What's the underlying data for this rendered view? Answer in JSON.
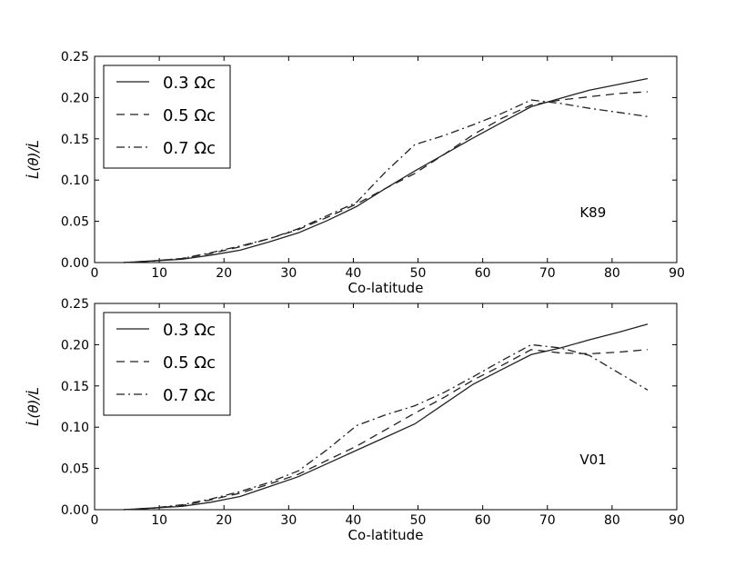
{
  "chart_data": [
    {
      "type": "line",
      "panel": "top",
      "annotation": "K89",
      "xlabel": "Co-latitude",
      "ylabel": "L̇(θ)/L̇",
      "xlim": [
        0,
        90
      ],
      "ylim": [
        0,
        0.25
      ],
      "xticks": [
        "0",
        "10",
        "20",
        "30",
        "40",
        "50",
        "60",
        "70",
        "80",
        "90"
      ],
      "yticks": [
        "0.00",
        "0.05",
        "0.10",
        "0.15",
        "0.20",
        "0.25"
      ],
      "legend_position": "top-left",
      "grid": false,
      "x": [
        4.5,
        9,
        13.5,
        18,
        22.5,
        27,
        31.5,
        36,
        40.5,
        45,
        49.5,
        54,
        58.5,
        63,
        67.5,
        72,
        76.5,
        81,
        85.5
      ],
      "series": [
        {
          "name": "0.3 Ωc",
          "style": "solid",
          "values": [
            0.0,
            0.002,
            0.004,
            0.009,
            0.015,
            0.025,
            0.036,
            0.051,
            0.068,
            0.09,
            0.111,
            0.131,
            0.151,
            0.17,
            0.189,
            0.199,
            0.209,
            0.216,
            0.223
          ]
        },
        {
          "name": "0.5 Ωc",
          "style": "dashed",
          "values": [
            0.0,
            0.002,
            0.005,
            0.011,
            0.019,
            0.029,
            0.04,
            0.055,
            0.071,
            0.09,
            0.108,
            0.131,
            0.155,
            0.175,
            0.191,
            0.197,
            0.201,
            0.205,
            0.207
          ]
        },
        {
          "name": "0.7 Ωc",
          "style": "dashdot",
          "values": [
            0.0,
            0.002,
            0.005,
            0.012,
            0.02,
            0.029,
            0.041,
            0.057,
            0.073,
            0.11,
            0.143,
            0.154,
            0.167,
            0.181,
            0.197,
            0.193,
            0.187,
            0.182,
            0.177
          ]
        }
      ]
    },
    {
      "type": "line",
      "panel": "bottom",
      "annotation": "V01",
      "xlabel": "Co-latitude",
      "ylabel": "L̇(θ)/L̇",
      "xlim": [
        0,
        90
      ],
      "ylim": [
        0,
        0.25
      ],
      "xticks": [
        "0",
        "10",
        "20",
        "30",
        "40",
        "50",
        "60",
        "70",
        "80",
        "90"
      ],
      "yticks": [
        "0.00",
        "0.05",
        "0.10",
        "0.15",
        "0.20",
        "0.25"
      ],
      "legend_position": "top-left",
      "grid": false,
      "x": [
        4.5,
        9,
        13.5,
        18,
        22.5,
        27,
        31.5,
        36,
        40.5,
        45,
        49.5,
        54,
        58.5,
        63,
        67.5,
        72,
        76.5,
        81,
        85.5
      ],
      "series": [
        {
          "name": "0.3 Ωc",
          "style": "solid",
          "values": [
            0.0,
            0.002,
            0.004,
            0.009,
            0.016,
            0.028,
            0.04,
            0.056,
            0.072,
            0.088,
            0.104,
            0.128,
            0.152,
            0.17,
            0.188,
            0.196,
            0.206,
            0.215,
            0.225
          ]
        },
        {
          "name": "0.5 Ωc",
          "style": "dashed",
          "values": [
            0.0,
            0.002,
            0.005,
            0.012,
            0.02,
            0.031,
            0.043,
            0.06,
            0.077,
            0.097,
            0.117,
            0.136,
            0.157,
            0.175,
            0.194,
            0.19,
            0.189,
            0.191,
            0.194
          ]
        },
        {
          "name": "0.7 Ωc",
          "style": "dashdot",
          "values": [
            0.0,
            0.002,
            0.006,
            0.013,
            0.022,
            0.033,
            0.047,
            0.073,
            0.102,
            0.115,
            0.126,
            0.142,
            0.161,
            0.181,
            0.2,
            0.196,
            0.187,
            0.166,
            0.145
          ]
        }
      ]
    }
  ]
}
